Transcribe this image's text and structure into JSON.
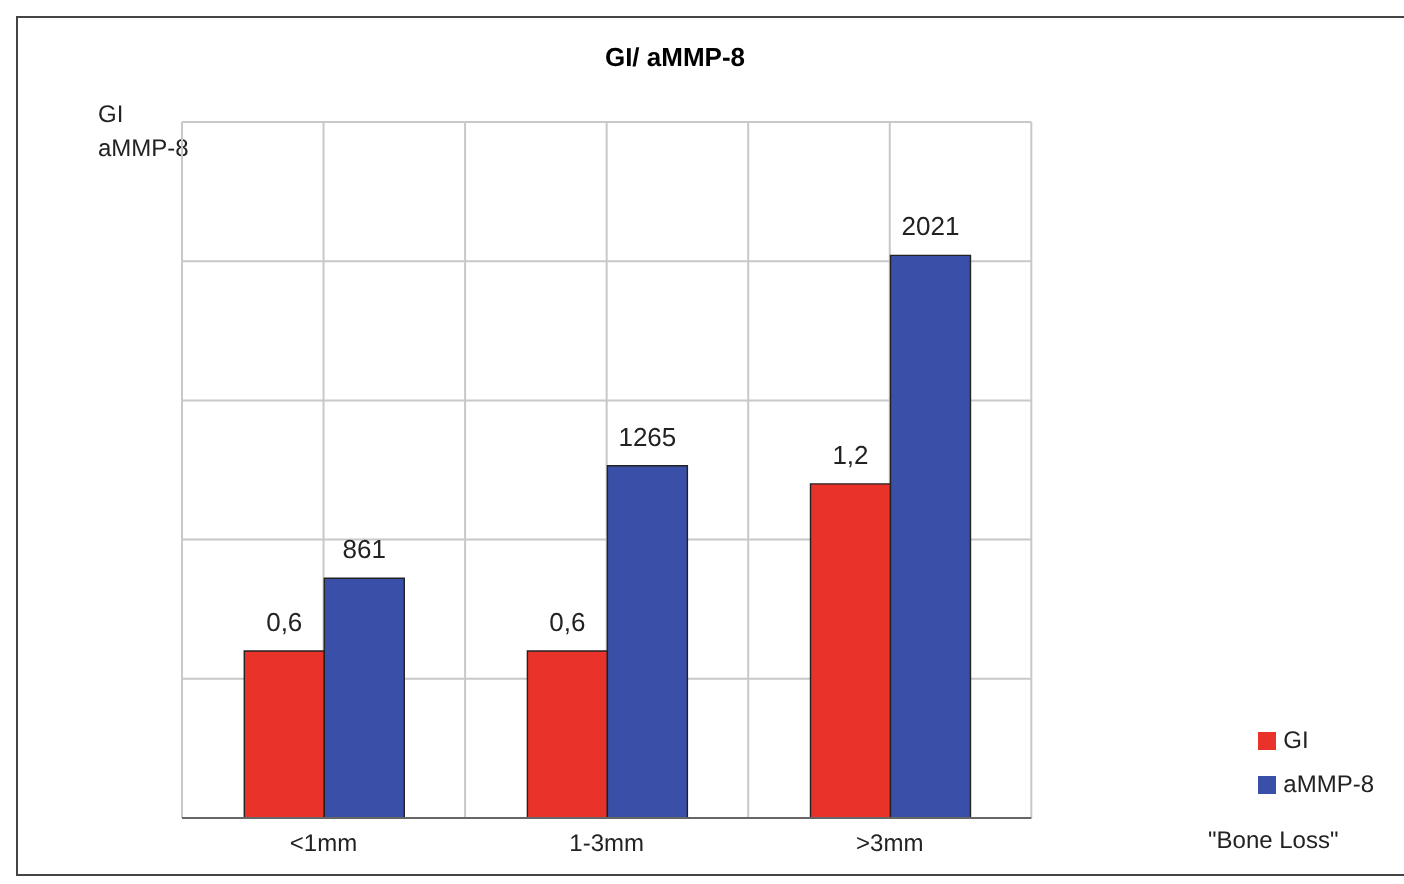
{
  "chart_data": {
    "type": "bar",
    "title": "GI/ aMMP-8",
    "ylabel": "GI\naMMP-8",
    "annotations": [
      "\"Bone Loss\""
    ],
    "categories": [
      "<1mm",
      "1-3mm",
      ">3mm"
    ],
    "series": [
      {
        "name": "GI",
        "color": "#e8322a",
        "values": [
          0.6,
          0.6,
          1.2
        ],
        "value_labels": [
          "0,6",
          "0,6",
          "1,2"
        ]
      },
      {
        "name": "aMMP-8",
        "color": "#3a4fa8",
        "values": [
          861,
          1265,
          2021
        ],
        "axis": "y2",
        "value_labels": [
          "861",
          "1265",
          "2021"
        ]
      }
    ],
    "ylim": [
      0,
      2.5
    ],
    "y2lim": [
      0,
      2500
    ],
    "tick_labels": "x",
    "grid": true,
    "legend": "right"
  }
}
